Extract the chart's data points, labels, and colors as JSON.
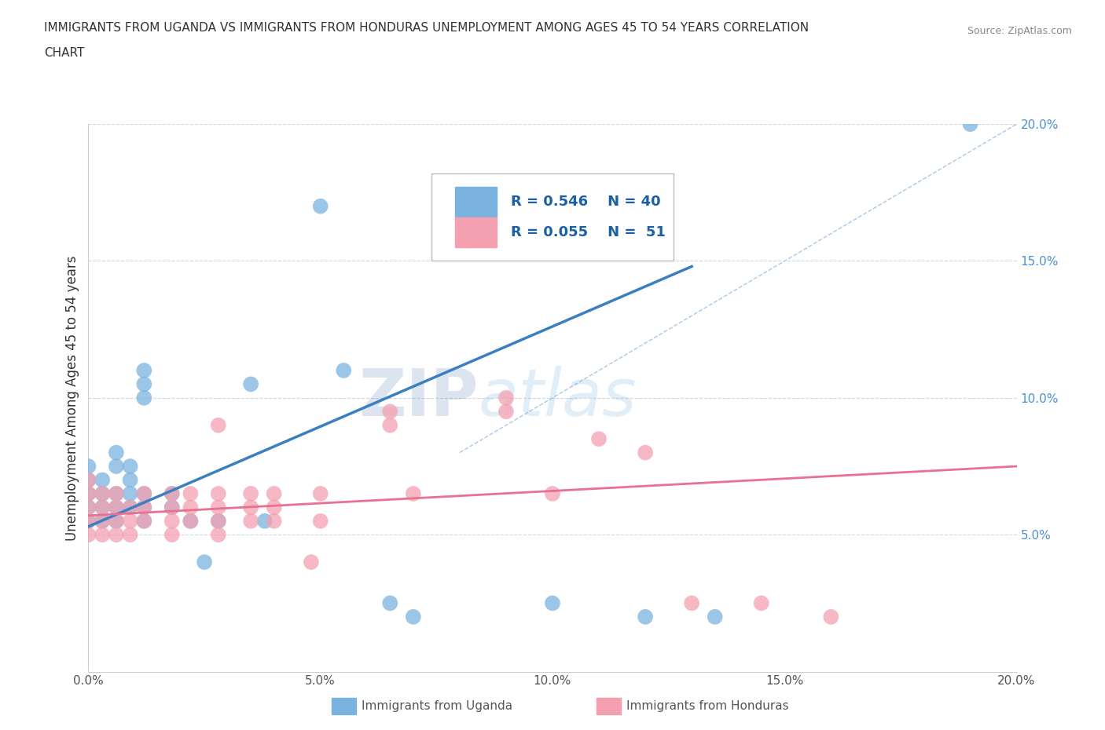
{
  "title_line1": "IMMIGRANTS FROM UGANDA VS IMMIGRANTS FROM HONDURAS UNEMPLOYMENT AMONG AGES 45 TO 54 YEARS CORRELATION",
  "title_line2": "CHART",
  "source": "Source: ZipAtlas.com",
  "ylabel": "Unemployment Among Ages 45 to 54 years",
  "xlabel": "",
  "xlim": [
    0.0,
    0.2
  ],
  "ylim": [
    0.0,
    0.2
  ],
  "xtick_labels": [
    "0.0%",
    "5.0%",
    "10.0%",
    "15.0%",
    "20.0%"
  ],
  "xtick_values": [
    0.0,
    0.05,
    0.1,
    0.15,
    0.2
  ],
  "ytick_labels": [
    "5.0%",
    "10.0%",
    "15.0%",
    "20.0%"
  ],
  "ytick_values": [
    0.05,
    0.1,
    0.15,
    0.2
  ],
  "uganda_color": "#7ab3e0",
  "honduras_color": "#f4a0b0",
  "uganda_R": 0.546,
  "uganda_N": 40,
  "honduras_R": 0.055,
  "honduras_N": 51,
  "uganda_line_color": "#3a7fc1",
  "honduras_line_color": "#e87090",
  "diagonal_color": "#aac8e8",
  "watermark_zip": "ZIP",
  "watermark_atlas": "atlas",
  "background_color": "#ffffff",
  "grid_color": "#d0d8e8",
  "legend_color": "#1a5fa8",
  "uganda_scatter": [
    [
      0.0,
      0.055
    ],
    [
      0.0,
      0.06
    ],
    [
      0.0,
      0.065
    ],
    [
      0.0,
      0.07
    ],
    [
      0.0,
      0.075
    ],
    [
      0.003,
      0.055
    ],
    [
      0.003,
      0.06
    ],
    [
      0.003,
      0.065
    ],
    [
      0.003,
      0.07
    ],
    [
      0.006,
      0.055
    ],
    [
      0.006,
      0.06
    ],
    [
      0.006,
      0.065
    ],
    [
      0.006,
      0.075
    ],
    [
      0.006,
      0.08
    ],
    [
      0.009,
      0.06
    ],
    [
      0.009,
      0.065
    ],
    [
      0.009,
      0.07
    ],
    [
      0.009,
      0.075
    ],
    [
      0.012,
      0.055
    ],
    [
      0.012,
      0.06
    ],
    [
      0.012,
      0.065
    ],
    [
      0.012,
      0.1
    ],
    [
      0.012,
      0.105
    ],
    [
      0.012,
      0.11
    ],
    [
      0.018,
      0.06
    ],
    [
      0.018,
      0.065
    ],
    [
      0.022,
      0.055
    ],
    [
      0.025,
      0.04
    ],
    [
      0.028,
      0.055
    ],
    [
      0.035,
      0.105
    ],
    [
      0.038,
      0.055
    ],
    [
      0.05,
      0.17
    ],
    [
      0.055,
      0.11
    ],
    [
      0.065,
      0.025
    ],
    [
      0.07,
      0.02
    ],
    [
      0.09,
      0.175
    ],
    [
      0.1,
      0.025
    ],
    [
      0.12,
      0.02
    ],
    [
      0.135,
      0.02
    ],
    [
      0.19,
      0.2
    ]
  ],
  "honduras_scatter": [
    [
      0.0,
      0.05
    ],
    [
      0.0,
      0.055
    ],
    [
      0.0,
      0.06
    ],
    [
      0.0,
      0.065
    ],
    [
      0.0,
      0.07
    ],
    [
      0.003,
      0.05
    ],
    [
      0.003,
      0.055
    ],
    [
      0.003,
      0.06
    ],
    [
      0.003,
      0.065
    ],
    [
      0.006,
      0.05
    ],
    [
      0.006,
      0.055
    ],
    [
      0.006,
      0.06
    ],
    [
      0.006,
      0.065
    ],
    [
      0.009,
      0.05
    ],
    [
      0.009,
      0.055
    ],
    [
      0.009,
      0.06
    ],
    [
      0.012,
      0.055
    ],
    [
      0.012,
      0.06
    ],
    [
      0.012,
      0.065
    ],
    [
      0.018,
      0.05
    ],
    [
      0.018,
      0.055
    ],
    [
      0.018,
      0.06
    ],
    [
      0.018,
      0.065
    ],
    [
      0.022,
      0.055
    ],
    [
      0.022,
      0.06
    ],
    [
      0.022,
      0.065
    ],
    [
      0.028,
      0.05
    ],
    [
      0.028,
      0.055
    ],
    [
      0.028,
      0.06
    ],
    [
      0.028,
      0.065
    ],
    [
      0.028,
      0.09
    ],
    [
      0.035,
      0.055
    ],
    [
      0.035,
      0.06
    ],
    [
      0.035,
      0.065
    ],
    [
      0.04,
      0.055
    ],
    [
      0.04,
      0.06
    ],
    [
      0.04,
      0.065
    ],
    [
      0.048,
      0.04
    ],
    [
      0.05,
      0.055
    ],
    [
      0.05,
      0.065
    ],
    [
      0.065,
      0.09
    ],
    [
      0.065,
      0.095
    ],
    [
      0.07,
      0.065
    ],
    [
      0.09,
      0.095
    ],
    [
      0.09,
      0.1
    ],
    [
      0.1,
      0.065
    ],
    [
      0.11,
      0.085
    ],
    [
      0.12,
      0.08
    ],
    [
      0.13,
      0.025
    ],
    [
      0.145,
      0.025
    ],
    [
      0.16,
      0.02
    ]
  ],
  "uganda_line_x0": 0.0,
  "uganda_line_y0": 0.053,
  "uganda_line_x1": 0.13,
  "uganda_line_y1": 0.148,
  "honduras_line_x0": 0.0,
  "honduras_line_y0": 0.057,
  "honduras_line_x1": 0.2,
  "honduras_line_y1": 0.075
}
